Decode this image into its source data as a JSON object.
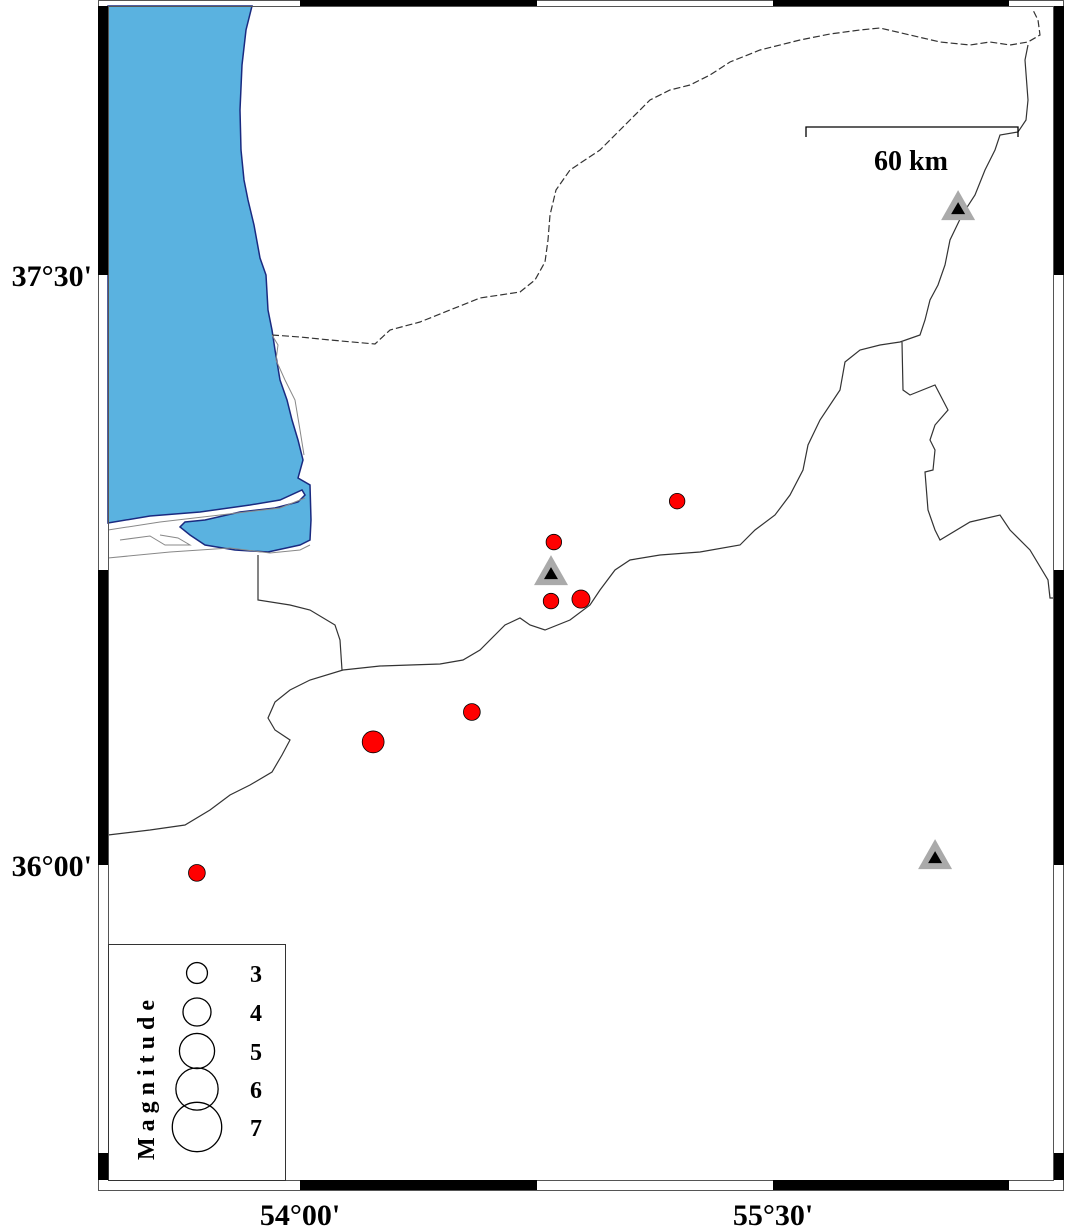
{
  "map": {
    "lon_ticks": [
      {
        "value": 54.0,
        "label": "54°00'"
      },
      {
        "value": 55.5,
        "label": "55°30'"
      }
    ],
    "lat_ticks": [
      {
        "value": 37.5,
        "label": "37°30'"
      },
      {
        "value": 36.0,
        "label": "36°00'"
      }
    ],
    "colors": {
      "sea": "#5ab2e0",
      "coastline": "#1a2a80",
      "event": "#ff0000",
      "station_outer": "#aaaaaa",
      "station_inner": "#000000"
    }
  },
  "scale_bar": {
    "label": "60 km"
  },
  "events": [
    {
      "lon": 55.196,
      "lat": 36.925,
      "magnitude": 2.5
    },
    {
      "lon": 54.805,
      "lat": 36.821,
      "magnitude": 2.5
    },
    {
      "lon": 54.796,
      "lat": 36.671,
      "magnitude": 2.5
    },
    {
      "lon": 54.891,
      "lat": 36.676,
      "magnitude": 2.9
    },
    {
      "lon": 54.545,
      "lat": 36.389,
      "magnitude": 2.7
    },
    {
      "lon": 54.232,
      "lat": 36.313,
      "magnitude": 3.5
    },
    {
      "lon": 53.673,
      "lat": 35.98,
      "magnitude": 2.7
    }
  ],
  "stations": [
    {
      "lon": 56.087,
      "lat": 37.67
    },
    {
      "lon": 54.796,
      "lat": 36.742
    },
    {
      "lon": 56.014,
      "lat": 36.02
    }
  ],
  "legend": {
    "title": "Magnitude",
    "entries": [
      {
        "label": "3"
      },
      {
        "label": "4"
      },
      {
        "label": "5"
      },
      {
        "label": "6"
      },
      {
        "label": "7"
      }
    ]
  }
}
